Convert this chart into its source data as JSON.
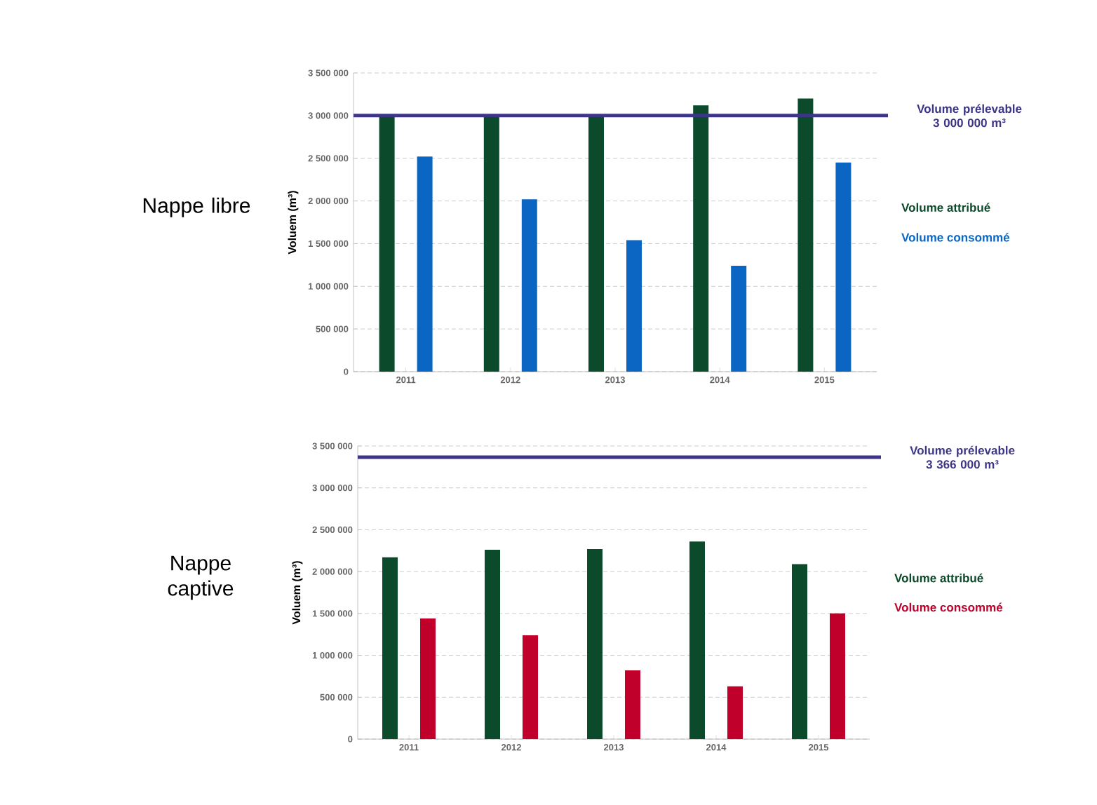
{
  "chart_data": [
    {
      "type": "bar",
      "title": "Nappe libre",
      "ylabel": "Voluem (m³)",
      "categories": [
        "2011",
        "2012",
        "2013",
        "2014",
        "2015"
      ],
      "series": [
        {
          "name": "Volume attribué",
          "color": "#0b4a2a",
          "values": [
            3000000,
            3000000,
            3000000,
            3120000,
            3200000
          ]
        },
        {
          "name": "Volume consommé",
          "color": "#0a66c2",
          "values": [
            2520000,
            2020000,
            1540000,
            1240000,
            2450000
          ]
        }
      ],
      "ylim": [
        0,
        3500000
      ],
      "yticks": [
        {
          "value": 0,
          "label": "0"
        },
        {
          "value": 500000,
          "label": "500 000"
        },
        {
          "value": 1000000,
          "label": "1 000 000"
        },
        {
          "value": 1500000,
          "label": "1 500 000"
        },
        {
          "value": 2000000,
          "label": "2 000 000"
        },
        {
          "value": 2500000,
          "label": "2 500 000"
        },
        {
          "value": 3000000,
          "label": "3 000 000"
        },
        {
          "value": 3500000,
          "label": "3 500 000"
        }
      ],
      "grid": "y",
      "legend": "right",
      "ref_lines": [
        {
          "axis": "y",
          "value": 3000000,
          "label": "Volume prélevable 3 000 000 m³",
          "color": "#3d3585"
        }
      ]
    },
    {
      "type": "bar",
      "title": "Nappe captive",
      "ylabel": "Voluem (m³)",
      "categories": [
        "2011",
        "2012",
        "2013",
        "2014",
        "2015"
      ],
      "series": [
        {
          "name": "Volume attribué",
          "color": "#0b4a2a",
          "values": [
            2170000,
            2260000,
            2270000,
            2360000,
            2090000
          ]
        },
        {
          "name": "Volume consommé",
          "color": "#c0002a",
          "values": [
            1440000,
            1240000,
            820000,
            630000,
            1500000
          ]
        }
      ],
      "ylim": [
        0,
        3500000
      ],
      "yticks": [
        {
          "value": 0,
          "label": "0"
        },
        {
          "value": 500000,
          "label": "500 000"
        },
        {
          "value": 1000000,
          "label": "1 000 000"
        },
        {
          "value": 1500000,
          "label": "1 500 000"
        },
        {
          "value": 2000000,
          "label": "2 000 000"
        },
        {
          "value": 2500000,
          "label": "2 500 000"
        },
        {
          "value": 3000000,
          "label": "3 000 000"
        },
        {
          "value": 3500000,
          "label": "3 500 000"
        }
      ],
      "grid": "y",
      "legend": "right",
      "ref_lines": [
        {
          "axis": "y",
          "value": 3366000,
          "label": "Volume prélevable 3 366 000 m³",
          "color": "#3d3585"
        }
      ]
    }
  ]
}
